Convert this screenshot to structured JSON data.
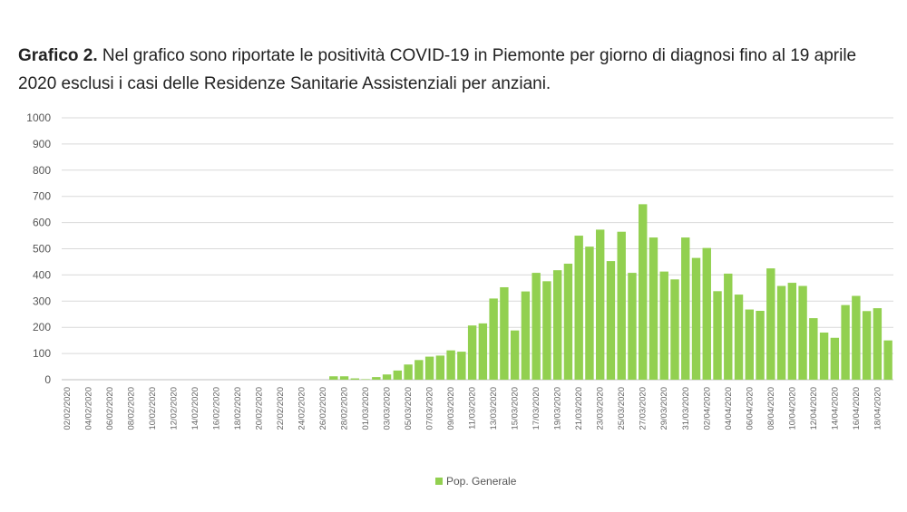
{
  "title": {
    "bold": "Grafico 2.",
    "text": " Nel grafico sono riportate le positività COVID-19 in Piemonte per giorno di diagnosi fino al 19 aprile 2020 esclusi i casi delle Residenze Sanitarie Assistenziali per anziani."
  },
  "chart_data": {
    "type": "bar",
    "title": "Grafico 2. Nel grafico sono riportate le positività COVID-19 in Piemonte per giorno di diagnosi fino al 19 aprile 2020 esclusi i casi delle Residenze Sanitarie Assistenziali per anziani.",
    "xlabel": "",
    "ylabel": "",
    "ylim": [
      0,
      1000
    ],
    "yticks": [
      0,
      100,
      200,
      300,
      400,
      500,
      600,
      700,
      800,
      900,
      1000
    ],
    "grid": true,
    "legend": {
      "position": "bottom",
      "entries": [
        "Pop. Generale"
      ]
    },
    "color": "#92d050",
    "start_date": "2020-02-02",
    "series": [
      {
        "name": "Pop. Generale",
        "values": [
          0,
          0,
          0,
          0,
          0,
          0,
          0,
          0,
          0,
          0,
          0,
          0,
          0,
          0,
          0,
          0,
          0,
          0,
          0,
          0,
          0,
          0,
          0,
          0,
          0,
          13,
          13,
          5,
          2,
          10,
          20,
          35,
          58,
          75,
          88,
          92,
          112,
          107,
          207,
          215,
          310,
          353,
          188,
          337,
          408,
          376,
          418,
          443,
          550,
          508,
          573,
          453,
          565,
          408,
          670,
          543,
          413,
          383,
          543,
          465,
          503,
          338,
          405,
          325,
          268,
          263,
          425,
          358,
          370,
          358,
          235,
          180,
          160,
          285,
          320,
          262,
          273,
          150
        ]
      }
    ]
  }
}
